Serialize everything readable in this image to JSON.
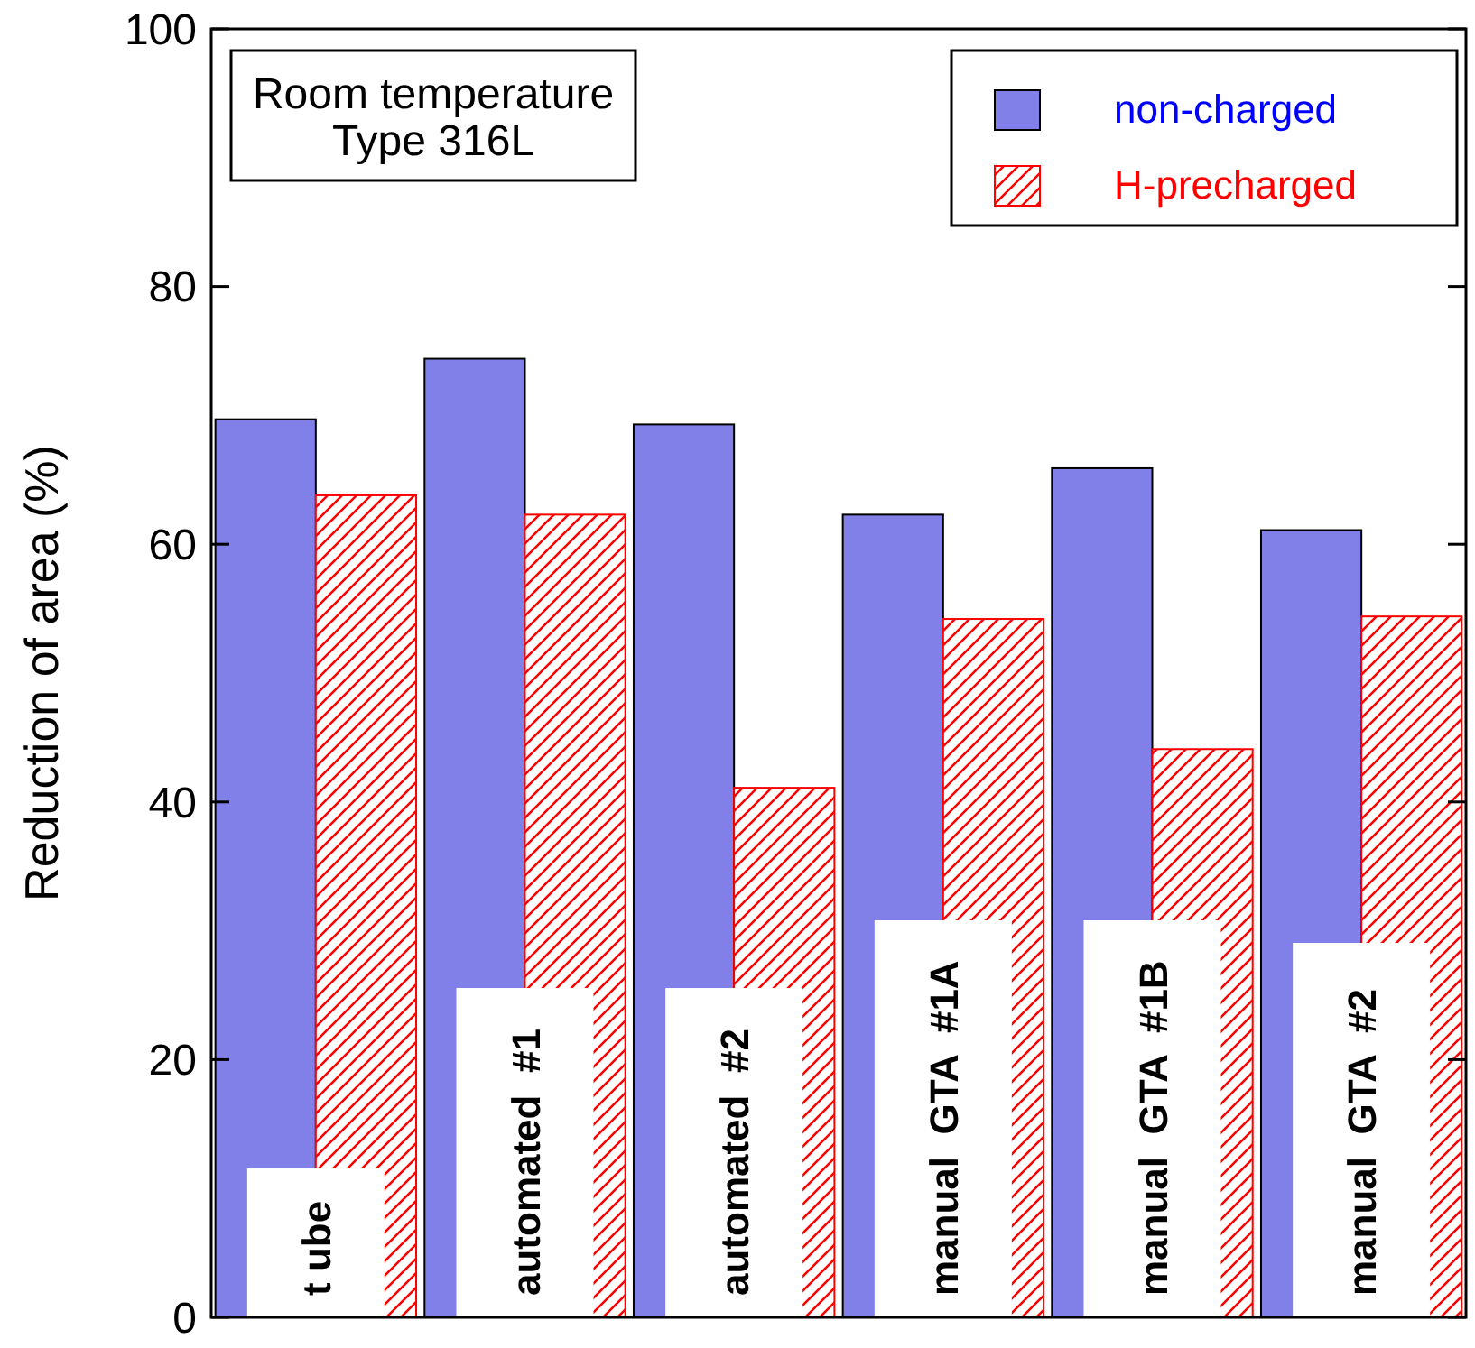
{
  "chart_data": {
    "type": "bar",
    "ylabel": "Reduction of area (%)",
    "annotations": [
      "Room temperature\nType 316L"
    ],
    "categories": [
      "t ube",
      "automated  #1",
      "automated  #2",
      "manual  GTA  #1A",
      "manual  GTA  #1B",
      "manual  GTA  #2"
    ],
    "series": [
      {
        "name": "non-charged",
        "color": "#8080e8",
        "values": [
          69.7,
          74.4,
          69.3,
          62.3,
          65.9,
          61.1
        ]
      },
      {
        "name": "H-precharged",
        "color": "#ff0000",
        "values": [
          63.8,
          62.3,
          41.1,
          54.2,
          44.1,
          54.4
        ]
      }
    ],
    "ylim": [
      0,
      100
    ],
    "yticks": [
      0,
      20,
      40,
      60,
      80,
      100
    ],
    "grid": false,
    "legend": "top right"
  }
}
